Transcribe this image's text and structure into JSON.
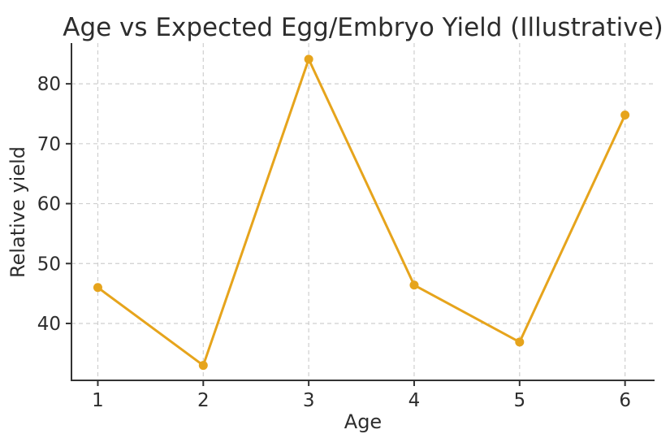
{
  "chart_data": {
    "type": "line",
    "title": "Age vs Expected Egg/Embryo Yield (Illustrative)",
    "xlabel": "Age",
    "ylabel": "Relative yield",
    "x": [
      1,
      2,
      3,
      4,
      5,
      6
    ],
    "series": [
      {
        "name": "Relative yield",
        "values": [
          46.0,
          33.0,
          84.1,
          46.4,
          36.9,
          74.8
        ]
      }
    ],
    "xticks": [
      1,
      2,
      3,
      4,
      5,
      6
    ],
    "yticks": [
      40,
      50,
      60,
      70,
      80
    ],
    "xlim": [
      0.75,
      6.28
    ],
    "ylim": [
      30.5,
      86.8
    ],
    "grid": true,
    "grid_style": "dashed",
    "legend_position": "none",
    "line_color": "#E6A41C",
    "marker": "circle",
    "marker_color": "#E6A41C"
  },
  "colors": {
    "accent": "#E6A41C",
    "grid": "#cfcfcf",
    "spine": "#333333",
    "text": "#2d2d2d",
    "background": "#ffffff"
  }
}
